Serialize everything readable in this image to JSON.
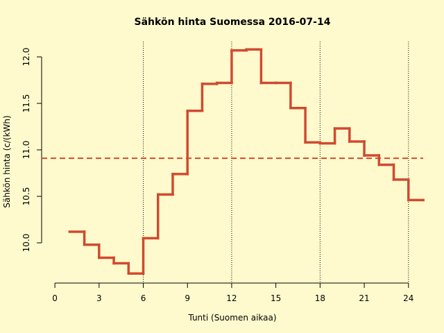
{
  "chart_data": {
    "type": "step",
    "title": "Sähkön hinta Suomessa 2016-07-14",
    "x_label": "Tunti (Suomen aikaa)",
    "y_label": "Sähkön hinta (c/(kWh)",
    "x": [
      1,
      2,
      3,
      4,
      5,
      6,
      7,
      8,
      9,
      10,
      11,
      12,
      13,
      14,
      15,
      16,
      17,
      18,
      19,
      20,
      21,
      22,
      23,
      24,
      25
    ],
    "series": [
      {
        "color": "#d04a30",
        "values": [
          10.12,
          9.98,
          9.84,
          9.78,
          9.67,
          10.05,
          10.52,
          10.74,
          11.42,
          11.71,
          11.72,
          12.07,
          12.08,
          11.72,
          11.72,
          11.45,
          11.08,
          11.07,
          11.23,
          11.09,
          10.94,
          10.84,
          10.68,
          10.46,
          10.46
        ]
      }
    ],
    "mean_line": 10.91,
    "vlines": [
      6,
      12,
      18,
      24
    ],
    "xlim": [
      -0.9,
      25
    ],
    "ylim": [
      9.575,
      12.164
    ],
    "xticks": [
      0,
      3,
      6,
      9,
      12,
      15,
      18,
      21,
      24
    ],
    "yticks": [
      {
        "value": 10,
        "label": "10.0"
      },
      10.5,
      {
        "value": 11,
        "label": "11.0"
      },
      11.5,
      {
        "value": 12,
        "label": "12.0"
      }
    ]
  }
}
